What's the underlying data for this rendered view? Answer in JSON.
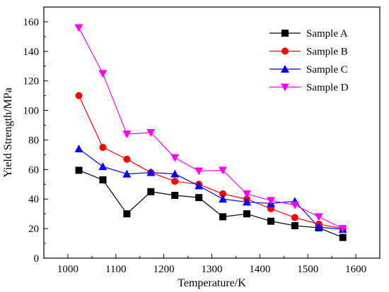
{
  "chart_data": {
    "type": "line",
    "xlabel": "Temperature/K",
    "ylabel": "Yield Strength/MPa",
    "xlim": [
      950,
      1650
    ],
    "ylim": [
      0,
      170
    ],
    "x_ticks": [
      1000,
      1100,
      1200,
      1300,
      1400,
      1500,
      1600
    ],
    "x_minor_step": 50,
    "y_ticks": [
      0,
      20,
      40,
      60,
      80,
      100,
      120,
      140,
      160
    ],
    "y_minor_step": 10,
    "grid": false,
    "legend_position": "top-right",
    "x": [
      1023,
      1073,
      1123,
      1173,
      1223,
      1273,
      1323,
      1373,
      1423,
      1473,
      1523,
      1573
    ],
    "series": [
      {
        "name": "Sample A",
        "marker": "square",
        "color": "#000000",
        "values": [
          59.5,
          53,
          30,
          45,
          42.5,
          41,
          28,
          30,
          25,
          22,
          20.5,
          14
        ]
      },
      {
        "name": "Sample B",
        "marker": "circle",
        "color": "#ff0000",
        "values": [
          110,
          75,
          67,
          58,
          52,
          50,
          43.5,
          40,
          33.5,
          27.5,
          23,
          20
        ]
      },
      {
        "name": "Sample C",
        "marker": "triangle-up",
        "color": "#0000ff",
        "values": [
          74,
          62,
          57,
          58,
          57,
          49,
          40,
          38,
          37,
          38.5,
          21,
          19.5
        ]
      },
      {
        "name": "Sample D",
        "marker": "triangle-down",
        "color": "#ff00ff",
        "values": [
          156,
          125,
          84,
          85,
          68,
          59,
          59.5,
          43.5,
          39,
          36,
          28,
          20
        ]
      }
    ]
  }
}
